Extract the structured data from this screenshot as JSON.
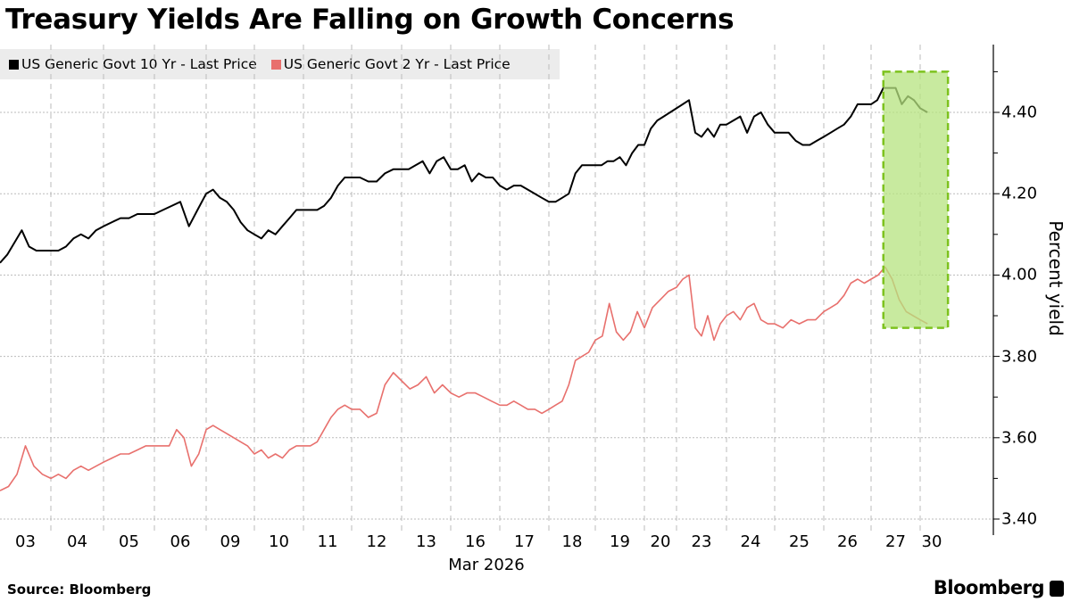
{
  "chart_data": {
    "type": "line",
    "title": "Treasury Yields Are Falling on Growth Concerns",
    "xlabel": "Mar 2026",
    "ylabel": "Percent yield",
    "ylim": [
      3.38,
      4.53
    ],
    "yticks": [
      "3.40",
      "3.60",
      "3.80",
      "4.00",
      "4.20",
      "4.40"
    ],
    "grid": true,
    "legend_position": "top-left",
    "categories": [
      "03",
      "04",
      "05",
      "06",
      "09",
      "10",
      "11",
      "12",
      "13",
      "16",
      "17",
      "18",
      "19",
      "20",
      "23",
      "24",
      "25",
      "26",
      "27",
      "30"
    ],
    "series": [
      {
        "name": "US Generic Govt 10 Yr - Last Price",
        "color": "#000000",
        "values_by_day": [
          [
            4.03,
            4.05,
            4.08,
            4.11,
            4.07,
            4.06,
            4.06
          ],
          [
            4.06,
            4.06,
            4.07,
            4.09,
            4.1,
            4.09,
            4.11
          ],
          [
            4.12,
            4.13,
            4.14,
            4.14,
            4.15,
            4.15
          ],
          [
            4.15,
            4.16,
            4.17,
            4.18,
            4.12,
            4.16
          ],
          [
            4.2,
            4.21,
            4.19,
            4.18,
            4.16,
            4.13,
            4.11
          ],
          [
            4.1,
            4.09,
            4.11,
            4.1,
            4.12,
            4.14,
            4.16
          ],
          [
            4.16,
            4.16,
            4.16,
            4.17,
            4.19,
            4.22,
            4.24
          ],
          [
            4.24,
            4.24,
            4.23,
            4.23,
            4.25,
            4.26
          ],
          [
            4.26,
            4.26,
            4.27,
            4.28,
            4.25,
            4.28,
            4.29
          ],
          [
            4.26,
            4.26,
            4.27,
            4.23,
            4.25,
            4.24,
            4.24
          ],
          [
            4.22,
            4.21,
            4.22,
            4.22,
            4.21,
            4.2,
            4.19
          ],
          [
            4.18,
            4.18,
            4.19,
            4.2,
            4.25,
            4.27,
            4.27
          ],
          [
            4.27,
            4.27,
            4.28,
            4.28,
            4.29,
            4.27,
            4.3,
            4.32
          ],
          [
            4.32,
            4.36,
            4.38,
            4.39,
            4.4
          ],
          [
            4.41,
            4.42,
            4.43,
            4.35,
            4.34,
            4.36,
            4.34,
            4.37
          ],
          [
            4.37,
            4.38,
            4.39,
            4.35,
            4.39,
            4.4,
            4.37
          ],
          [
            4.35,
            4.35,
            4.35,
            4.33,
            4.32,
            4.32,
            4.33
          ],
          [
            4.34,
            4.35,
            4.36,
            4.37,
            4.39,
            4.42,
            4.42
          ],
          [
            4.42,
            4.43,
            4.46,
            4.46,
            4.46,
            4.42,
            4.44,
            4.43
          ],
          [
            4.41,
            4.4
          ]
        ]
      },
      {
        "name": "US Generic Govt 2 Yr - Last Price",
        "color": "#e8706d",
        "values_by_day": [
          [
            3.47,
            3.48,
            3.51,
            3.58,
            3.53,
            3.51
          ],
          [
            3.5,
            3.51,
            3.5,
            3.52,
            3.53,
            3.52,
            3.53
          ],
          [
            3.54,
            3.55,
            3.56,
            3.56,
            3.57,
            3.58
          ],
          [
            3.58,
            3.58,
            3.58,
            3.62,
            3.6,
            3.53,
            3.56
          ],
          [
            3.62,
            3.63,
            3.62,
            3.61,
            3.6,
            3.59,
            3.58
          ],
          [
            3.56,
            3.57,
            3.55,
            3.56,
            3.55,
            3.57,
            3.58
          ],
          [
            3.58,
            3.58,
            3.59,
            3.62,
            3.65,
            3.67,
            3.68
          ],
          [
            3.67,
            3.67,
            3.65,
            3.66,
            3.73,
            3.76
          ],
          [
            3.74,
            3.72,
            3.73,
            3.75,
            3.71,
            3.73
          ],
          [
            3.71,
            3.7,
            3.71,
            3.71,
            3.7,
            3.69
          ],
          [
            3.68,
            3.68,
            3.69,
            3.68,
            3.67,
            3.67,
            3.66
          ],
          [
            3.67,
            3.68,
            3.69,
            3.73,
            3.79,
            3.8,
            3.81
          ],
          [
            3.84,
            3.85,
            3.93,
            3.86,
            3.84,
            3.86,
            3.91
          ],
          [
            3.87,
            3.92,
            3.94,
            3.96
          ],
          [
            3.97,
            3.99,
            4.0,
            3.87,
            3.85,
            3.9,
            3.84,
            3.88
          ],
          [
            3.9,
            3.91,
            3.89,
            3.92,
            3.93,
            3.89,
            3.88
          ],
          [
            3.88,
            3.87,
            3.89,
            3.88,
            3.89,
            3.89
          ],
          [
            3.91,
            3.92,
            3.93,
            3.95,
            3.98,
            3.99,
            3.98
          ],
          [
            3.99,
            4.0,
            4.02,
            3.99,
            3.94,
            3.91,
            3.9
          ],
          [
            3.89,
            3.88
          ]
        ]
      }
    ],
    "highlight": {
      "from_day": "27",
      "to_day": "30",
      "y_range": [
        3.87,
        4.5
      ],
      "fill": "#b5e37f",
      "border": "#7dc21e"
    }
  },
  "footer": {
    "source": "Source: Bloomberg",
    "brand": "Bloomberg"
  },
  "colors": {
    "legend_bg": "#ececec",
    "grid": "#bbbbbb"
  }
}
